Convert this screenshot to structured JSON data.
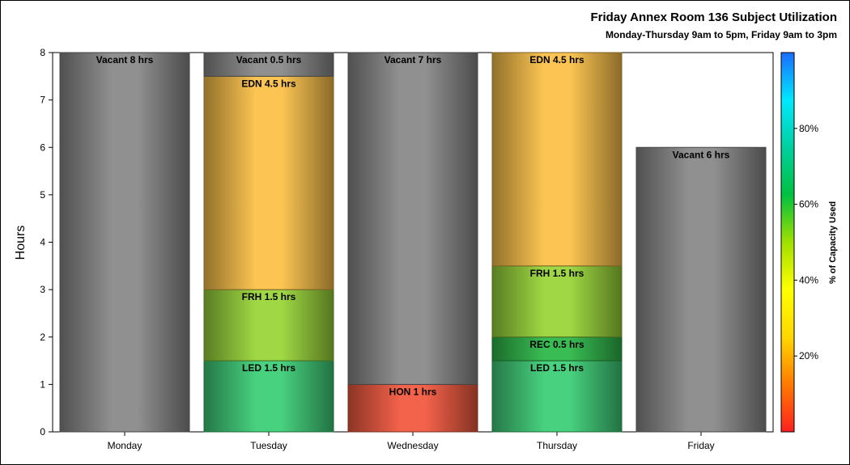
{
  "chart_data": {
    "type": "bar",
    "stacked": true,
    "title": "Friday Annex Room 136 Subject Utilization",
    "subtitle": "Monday-Thursday 9am to 5pm, Friday 9am to 3pm",
    "ylabel": "Hours",
    "xlabel": "",
    "ylim": [
      0,
      8
    ],
    "yticks": [
      "0",
      "1",
      "2",
      "3",
      "4",
      "5",
      "6",
      "7",
      "8"
    ],
    "categories": [
      "Monday",
      "Tuesday",
      "Wednesday",
      "Thursday",
      "Friday"
    ],
    "bars": [
      {
        "category": "Monday",
        "segments": [
          {
            "label": "Vacant 8 hrs",
            "value": 8,
            "color": "#8a8a8a"
          }
        ]
      },
      {
        "category": "Tuesday",
        "segments": [
          {
            "label": "LED 1.5 hrs",
            "value": 1.5,
            "color": "#3ecf78"
          },
          {
            "label": "FRH 1.5 hrs",
            "value": 1.5,
            "color": "#9ad63a"
          },
          {
            "label": "EDN 4.5 hrs",
            "value": 4.5,
            "color": "#fcc24a"
          },
          {
            "label": "Vacant 0.5 hrs",
            "value": 0.5,
            "color": "#8a8a8a"
          }
        ]
      },
      {
        "category": "Wednesday",
        "segments": [
          {
            "label": "HON 1 hrs",
            "value": 1,
            "color": "#f25a40"
          },
          {
            "label": "Vacant 7 hrs",
            "value": 7,
            "color": "#8a8a8a"
          }
        ]
      },
      {
        "category": "Thursday",
        "segments": [
          {
            "label": "LED 1.5 hrs",
            "value": 1.5,
            "color": "#3ecf78"
          },
          {
            "label": "REC 0.5 hrs",
            "value": 0.5,
            "color": "#2fb84a"
          },
          {
            "label": "FRH 1.5 hrs",
            "value": 1.5,
            "color": "#9ad63a"
          },
          {
            "label": "EDN 4.5 hrs",
            "value": 4.5,
            "color": "#fcc24a"
          }
        ]
      },
      {
        "category": "Friday",
        "segments": [
          {
            "label": "Vacant 6 hrs",
            "value": 6,
            "color": "#8a8a8a"
          }
        ]
      }
    ],
    "colorbar": {
      "title": "% of Capacity Used",
      "range": [
        0,
        100
      ],
      "ticks": [
        {
          "value": 20,
          "label": "20%"
        },
        {
          "value": 40,
          "label": "40%"
        },
        {
          "value": 60,
          "label": "60%"
        },
        {
          "value": 80,
          "label": "80%"
        }
      ],
      "colors": [
        "#ff2020",
        "#ff7a00",
        "#ffd700",
        "#ffff00",
        "#a0e000",
        "#00c040",
        "#00d0a0",
        "#00e8ff",
        "#1a6cff"
      ]
    },
    "grid": false,
    "legend": "right"
  }
}
